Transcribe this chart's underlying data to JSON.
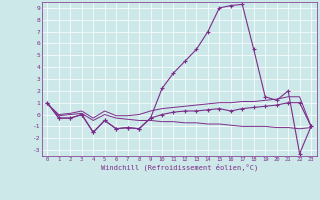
{
  "hours": [
    0,
    1,
    2,
    3,
    4,
    5,
    6,
    7,
    8,
    9,
    10,
    11,
    12,
    13,
    14,
    15,
    16,
    17,
    18,
    19,
    20,
    21,
    22,
    23
  ],
  "windchill": [
    1.0,
    -0.3,
    -0.3,
    0.0,
    -1.5,
    -0.5,
    -1.2,
    -1.1,
    -1.2,
    -0.3,
    2.2,
    3.5,
    4.5,
    5.5,
    7.0,
    9.0,
    9.2,
    9.3,
    5.5,
    1.5,
    1.2,
    2.0,
    -3.3,
    -1.0
  ],
  "temp": [
    1.0,
    -0.3,
    -0.3,
    0.0,
    -1.5,
    -0.5,
    -1.2,
    -1.1,
    -1.2,
    -0.3,
    0.0,
    0.2,
    0.3,
    0.3,
    0.4,
    0.5,
    0.3,
    0.5,
    0.6,
    0.7,
    0.8,
    1.0,
    1.0,
    -1.0
  ],
  "trend_hi": [
    0.9,
    0.0,
    0.1,
    0.3,
    -0.3,
    0.3,
    -0.1,
    -0.1,
    0.0,
    0.3,
    0.5,
    0.6,
    0.7,
    0.8,
    0.9,
    1.0,
    1.0,
    1.1,
    1.1,
    1.2,
    1.3,
    1.5,
    1.5,
    -1.0
  ],
  "trend_lo": [
    0.9,
    -0.1,
    0.0,
    0.1,
    -0.5,
    0.0,
    -0.3,
    -0.4,
    -0.5,
    -0.5,
    -0.6,
    -0.6,
    -0.7,
    -0.7,
    -0.8,
    -0.8,
    -0.9,
    -1.0,
    -1.0,
    -1.0,
    -1.1,
    -1.1,
    -1.2,
    -1.1
  ],
  "color": "#7b2d8b",
  "bg_color": "#cce8e8",
  "grid_color": "#ffffff",
  "ylim": [
    -3.5,
    9.5
  ],
  "yticks": [
    -3,
    -2,
    -1,
    0,
    1,
    2,
    3,
    4,
    5,
    6,
    7,
    8,
    9
  ],
  "xticks": [
    0,
    1,
    2,
    3,
    4,
    5,
    6,
    7,
    8,
    9,
    10,
    11,
    12,
    13,
    14,
    15,
    16,
    17,
    18,
    19,
    20,
    21,
    22,
    23
  ],
  "xlabel": "Windchill (Refroidissement éolien,°C)"
}
